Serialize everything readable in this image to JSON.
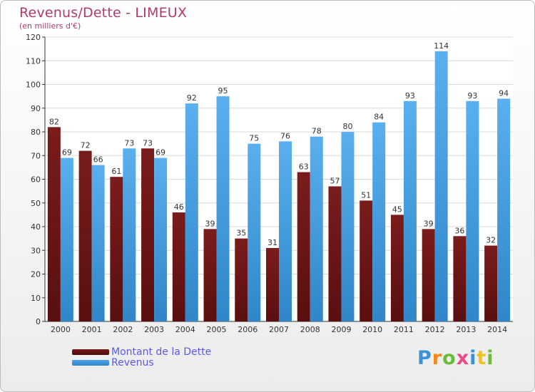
{
  "header": {
    "title": "Revenus/Dette - LIMEUX",
    "subtitle": "(en milliers d'€)"
  },
  "colors": {
    "dette": "#7a1c1c",
    "revenus": "#4aa3e6",
    "title": "#b03a6e",
    "legend_text": "#5a5ae6"
  },
  "chart_data": {
    "type": "bar",
    "title": "Revenus/Dette - LIMEUX",
    "subtitle": "(en milliers d'€)",
    "xlabel": "",
    "ylabel": "",
    "ylim": [
      0,
      120
    ],
    "yticks": [
      0,
      10,
      20,
      30,
      40,
      50,
      60,
      70,
      80,
      90,
      100,
      110,
      120
    ],
    "grid": true,
    "legend_position": "bottom-left",
    "categories": [
      "2000",
      "2001",
      "2002",
      "2003",
      "2004",
      "2005",
      "2006",
      "2007",
      "2008",
      "2009",
      "2010",
      "2011",
      "2012",
      "2013",
      "2014"
    ],
    "series": [
      {
        "name": "Montant de la Dette",
        "values": [
          82,
          72,
          61,
          73,
          46,
          39,
          35,
          31,
          63,
          57,
          51,
          45,
          39,
          36,
          32
        ]
      },
      {
        "name": "Revenus",
        "values": [
          69,
          66,
          73,
          69,
          92,
          95,
          75,
          76,
          78,
          80,
          84,
          93,
          114,
          93,
          94
        ]
      }
    ]
  },
  "legend": {
    "items": [
      {
        "label": "Montant de la Dette",
        "color": "#7a1c1c"
      },
      {
        "label": "Revenus",
        "color": "#4aa3e6"
      }
    ]
  },
  "logo": {
    "letters": [
      {
        "char": "P",
        "color": "#3d8fd6"
      },
      {
        "char": "r",
        "color": "#f08a1c"
      },
      {
        "char": "o",
        "color": "#6dbb3a"
      },
      {
        "char": "x",
        "color": "#e84a8c"
      },
      {
        "char": "i",
        "color": "#3d8fd6"
      },
      {
        "char": "t",
        "color": "#f0c21c"
      },
      {
        "char": "i",
        "color": "#6dbb3a"
      }
    ]
  }
}
